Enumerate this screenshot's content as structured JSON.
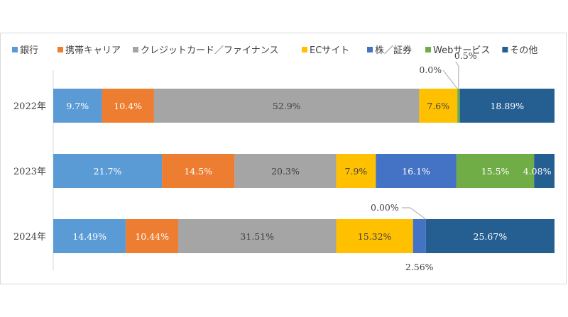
{
  "chart_data": {
    "type": "bar",
    "orientation": "horizontal",
    "stacked": "percent",
    "title": "",
    "xlabel": "",
    "ylabel": "",
    "legend_position": "top",
    "grid": false,
    "categories": [
      "2022年",
      "2023年",
      "2024年"
    ],
    "series": [
      {
        "name": "銀行",
        "color": "#5B9BD5",
        "values": [
          9.7,
          21.7,
          14.49
        ],
        "labels": [
          "9.7%",
          "21.7%",
          "14.49%"
        ]
      },
      {
        "name": "携帯キャリア",
        "color": "#ED7D31",
        "values": [
          10.4,
          14.5,
          10.44
        ],
        "labels": [
          "10.4%",
          "14.5%",
          "10.44%"
        ]
      },
      {
        "name": "クレジットカード／ファイナンス",
        "color": "#A5A5A5",
        "values": [
          52.9,
          20.3,
          31.51
        ],
        "labels": [
          "52.9%",
          "20.3%",
          "31.51%"
        ]
      },
      {
        "name": "ECサイト",
        "color": "#FFC000",
        "values": [
          7.6,
          7.9,
          15.32
        ],
        "labels": [
          "7.6%",
          "7.9%",
          "15.32%"
        ]
      },
      {
        "name": "株／証券",
        "color": "#4472C4",
        "values": [
          0.0,
          16.1,
          2.56
        ],
        "labels": [
          "0.0%",
          "16.1%",
          "2.56%"
        ]
      },
      {
        "name": "Webサービス",
        "color": "#70AD47",
        "values": [
          0.5,
          15.5,
          0.0
        ],
        "labels": [
          "0.5%",
          "15.5%",
          "0.00%"
        ]
      },
      {
        "name": "その他",
        "color": "#255E91",
        "values": [
          18.89,
          4.08,
          25.67
        ],
        "labels": [
          "18.89%",
          "4.08%",
          "25.67%"
        ]
      }
    ]
  }
}
